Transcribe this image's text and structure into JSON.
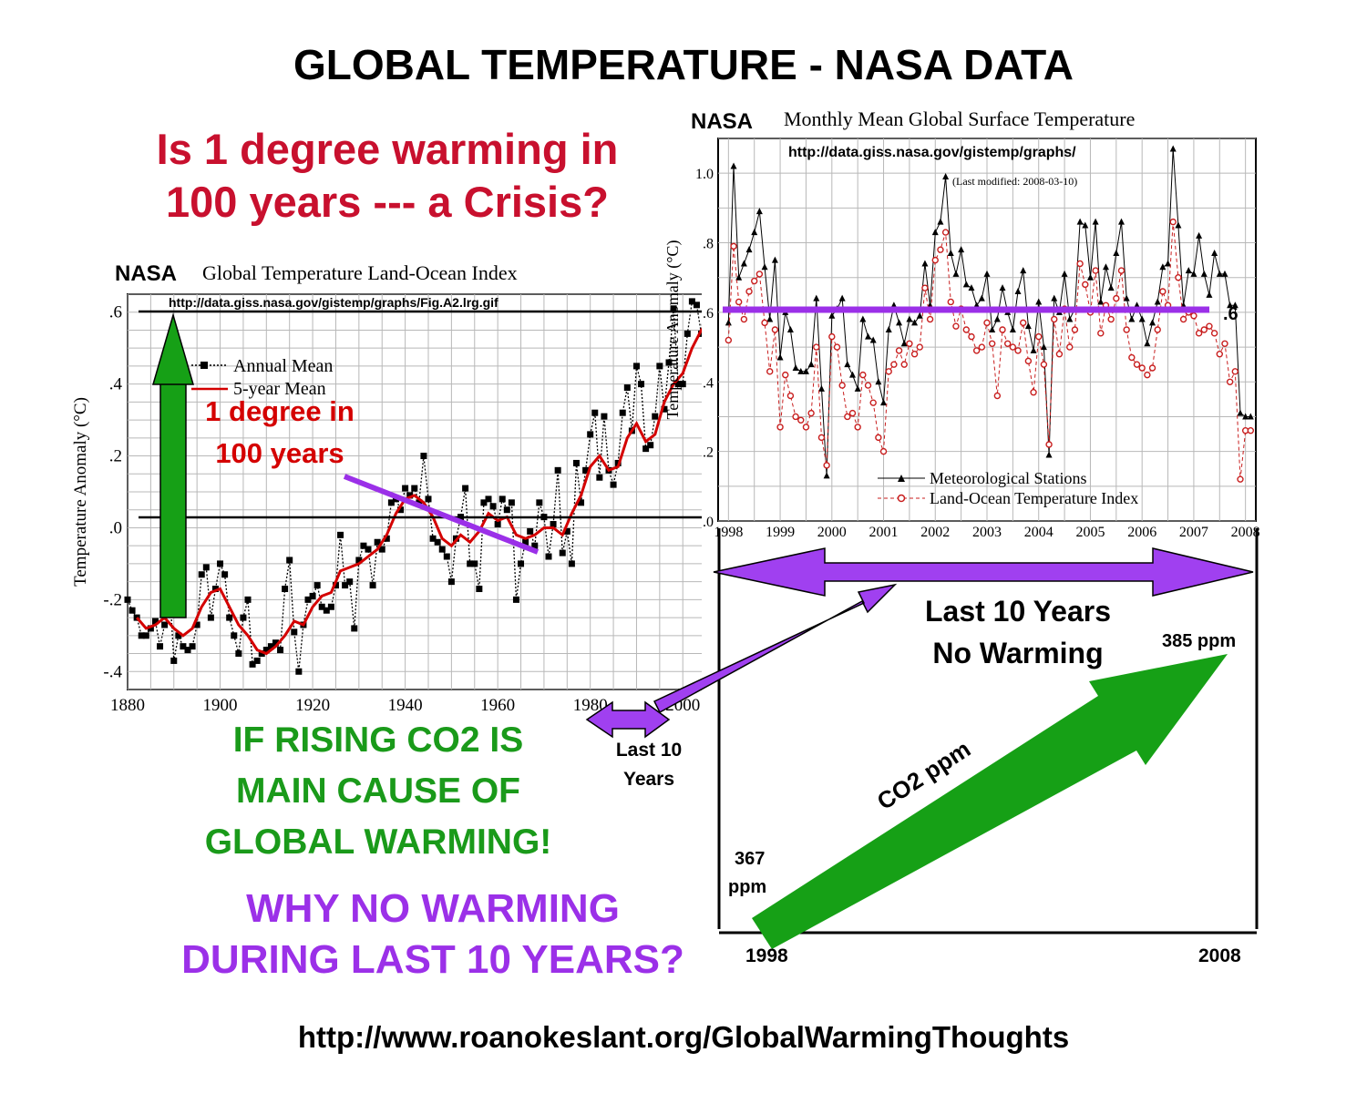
{
  "title": "GLOBAL TEMPERATURE - NASA DATA",
  "question": [
    "Is 1 degree warming in",
    "100 years  --- a Crisis?"
  ],
  "left_chart": {
    "source_label": "NASA",
    "title": "Global Temperature Land-Ocean Index",
    "url": "http://data.giss.nasa.gov/gistemp/graphs/Fig.A2.lrg.gif",
    "annotation": [
      "1 degree in",
      "100 years"
    ]
  },
  "right_chart": {
    "source_label": "NASA",
    "title": "Monthly Mean Global Surface Temperature",
    "url": "http://data.giss.nasa.gov/gistemp/graphs/",
    "modified": "(Last modified: 2008-03-10)",
    "level_label": ".6"
  },
  "co2_panel": {
    "span_label": [
      "Last 10 Years",
      "No Warming"
    ],
    "arrow_label": "CO2  ppm",
    "start_value": [
      "367",
      "ppm"
    ],
    "end_value": "385 ppm",
    "start_year": "1998",
    "end_year": "2008"
  },
  "small_label": [
    "Last 10",
    "Years"
  ],
  "if_text": [
    "IF RISING CO2  IS",
    "MAIN  CAUSE OF",
    "GLOBAL WARMING!"
  ],
  "why_text": [
    "WHY NO WARMING",
    "DURING LAST 10 YEARS?"
  ],
  "footer_url": "http://www.roanokeslant.org/GlobalWarmingThoughts",
  "colors": {
    "red": "#c8102e",
    "green": "#1a9a1a",
    "purple": "#9b30e8",
    "arrow_green": "#16a016"
  },
  "chart_data": [
    {
      "type": "line",
      "title": "Global Temperature Land-Ocean Index",
      "xlabel": "",
      "ylabel": "Temperature Anomaly (°C)",
      "xlim": [
        1880,
        2010
      ],
      "ylim": [
        -0.45,
        0.65
      ],
      "xticks": [
        1880,
        1900,
        1920,
        1940,
        1960,
        1980,
        2000
      ],
      "xtick_labels": [
        "1880",
        "1900",
        "1920",
        "1940",
        "1960",
        "1980",
        "2000"
      ],
      "yticks": [
        -0.4,
        -0.2,
        0.0,
        0.2,
        0.4,
        0.6
      ],
      "ytick_labels": [
        "-.4",
        "-.2",
        ".0",
        ".2",
        ".4",
        ".6"
      ],
      "grid": true,
      "legend": [
        "Annual Mean",
        "5-year Mean"
      ],
      "series": [
        {
          "name": "Annual Mean",
          "x": [
            1880,
            1881,
            1882,
            1883,
            1884,
            1885,
            1886,
            1887,
            1888,
            1889,
            1890,
            1891,
            1892,
            1893,
            1894,
            1895,
            1896,
            1897,
            1898,
            1899,
            1900,
            1901,
            1902,
            1903,
            1904,
            1905,
            1906,
            1907,
            1908,
            1909,
            1910,
            1911,
            1912,
            1913,
            1914,
            1915,
            1916,
            1917,
            1918,
            1919,
            1920,
            1921,
            1922,
            1923,
            1924,
            1925,
            1926,
            1927,
            1928,
            1929,
            1930,
            1931,
            1932,
            1933,
            1934,
            1935,
            1936,
            1937,
            1938,
            1939,
            1940,
            1941,
            1942,
            1943,
            1944,
            1945,
            1946,
            1947,
            1948,
            1949,
            1950,
            1951,
            1952,
            1953,
            1954,
            1955,
            1956,
            1957,
            1958,
            1959,
            1960,
            1961,
            1962,
            1963,
            1964,
            1965,
            1966,
            1967,
            1968,
            1969,
            1970,
            1971,
            1972,
            1973,
            1974,
            1975,
            1976,
            1977,
            1978,
            1979,
            1980,
            1981,
            1982,
            1983,
            1984,
            1985,
            1986,
            1987,
            1988,
            1989,
            1990,
            1991,
            1992,
            1993,
            1994,
            1995,
            1996,
            1997,
            1998,
            1999,
            2000,
            2001,
            2002,
            2003,
            2004,
            2005,
            2006,
            2007
          ],
          "values": [
            -0.2,
            -0.23,
            -0.25,
            -0.3,
            -0.3,
            -0.28,
            -0.26,
            -0.33,
            -0.27,
            -0.15,
            -0.37,
            -0.3,
            -0.33,
            -0.34,
            -0.33,
            -0.27,
            -0.13,
            -0.11,
            -0.25,
            -0.17,
            -0.1,
            -0.13,
            -0.25,
            -0.3,
            -0.35,
            -0.25,
            -0.2,
            -0.38,
            -0.37,
            -0.35,
            -0.34,
            -0.33,
            -0.32,
            -0.34,
            -0.17,
            -0.09,
            -0.29,
            -0.4,
            -0.27,
            -0.2,
            -0.19,
            -0.16,
            -0.22,
            -0.23,
            -0.22,
            -0.16,
            -0.02,
            -0.16,
            -0.15,
            -0.28,
            -0.09,
            -0.05,
            -0.06,
            -0.16,
            -0.04,
            -0.06,
            -0.03,
            0.07,
            0.08,
            0.05,
            0.11,
            0.09,
            0.11,
            0.07,
            0.2,
            0.08,
            -0.03,
            -0.04,
            -0.06,
            -0.08,
            -0.15,
            -0.03,
            0.03,
            0.11,
            -0.1,
            -0.1,
            -0.17,
            0.07,
            0.08,
            0.06,
            0.01,
            0.08,
            0.05,
            0.07,
            -0.2,
            -0.1,
            -0.04,
            -0.01,
            -0.05,
            0.07,
            0.03,
            -0.08,
            0.01,
            0.16,
            -0.07,
            -0.01,
            -0.1,
            0.18,
            0.07,
            0.16,
            0.26,
            0.32,
            0.14,
            0.31,
            0.16,
            0.12,
            0.18,
            0.32,
            0.39,
            0.27,
            0.45,
            0.4,
            0.22,
            0.23,
            0.31,
            0.45,
            0.33,
            0.46,
            0.61,
            0.4,
            0.4,
            0.54,
            0.63,
            0.62,
            0.54,
            0.68,
            0.61,
            0.57
          ]
        },
        {
          "name": "5-year Mean",
          "x": [
            1882,
            1884,
            1886,
            1888,
            1890,
            1892,
            1894,
            1896,
            1898,
            1900,
            1902,
            1904,
            1906,
            1908,
            1910,
            1912,
            1914,
            1916,
            1918,
            1920,
            1922,
            1924,
            1926,
            1928,
            1930,
            1932,
            1934,
            1936,
            1938,
            1940,
            1942,
            1944,
            1946,
            1948,
            1950,
            1952,
            1954,
            1956,
            1958,
            1960,
            1962,
            1964,
            1966,
            1968,
            1970,
            1972,
            1974,
            1976,
            1978,
            1980,
            1982,
            1984,
            1986,
            1988,
            1990,
            1992,
            1994,
            1996,
            1998,
            2000,
            2002,
            2004,
            2006
          ],
          "values": [
            -0.25,
            -0.28,
            -0.27,
            -0.25,
            -0.28,
            -0.3,
            -0.28,
            -0.22,
            -0.18,
            -0.17,
            -0.22,
            -0.27,
            -0.3,
            -0.34,
            -0.35,
            -0.33,
            -0.3,
            -0.26,
            -0.27,
            -0.22,
            -0.19,
            -0.18,
            -0.12,
            -0.11,
            -0.1,
            -0.08,
            -0.06,
            -0.02,
            0.04,
            0.08,
            0.09,
            0.07,
            0.03,
            -0.03,
            -0.05,
            -0.02,
            -0.04,
            -0.01,
            0.04,
            0.02,
            0.03,
            -0.02,
            -0.03,
            -0.02,
            0.0,
            0.0,
            -0.02,
            0.04,
            0.09,
            0.17,
            0.2,
            0.16,
            0.17,
            0.25,
            0.29,
            0.24,
            0.26,
            0.35,
            0.4,
            0.43,
            0.5,
            0.55,
            0.58
          ]
        }
      ]
    },
    {
      "type": "line",
      "title": "Monthly Mean Global Surface Temperature",
      "xlabel": "",
      "ylabel": "Temperature Anomaly (°C)",
      "xlim": [
        1997.8,
        2008.2
      ],
      "ylim": [
        0.0,
        1.1
      ],
      "xticks": [
        1998,
        1999,
        2000,
        2001,
        2002,
        2003,
        2004,
        2005,
        2006,
        2007,
        2008
      ],
      "xtick_labels": [
        "1998",
        "1999",
        "2000",
        "2001",
        "2002",
        "2003",
        "2004",
        "2005",
        "2006",
        "2007",
        "2008"
      ],
      "yticks": [
        0.0,
        0.2,
        0.4,
        0.6,
        0.8,
        1.0
      ],
      "ytick_labels": [
        ".0",
        ".2",
        ".4",
        ".6",
        ".8",
        "1.0"
      ],
      "grid": true,
      "legend": [
        "Meteorological Stations",
        "Land-Ocean Temperature Index"
      ],
      "reference_line": 0.6,
      "series": [
        {
          "name": "Meteorological Stations",
          "x": [
            1998.0,
            1998.1,
            1998.2,
            1998.3,
            1998.4,
            1998.5,
            1998.6,
            1998.7,
            1998.8,
            1998.9,
            1999.0,
            1999.1,
            1999.2,
            1999.3,
            1999.4,
            1999.5,
            1999.6,
            1999.7,
            1999.8,
            1999.9,
            2000.0,
            2000.1,
            2000.2,
            2000.3,
            2000.4,
            2000.5,
            2000.6,
            2000.7,
            2000.8,
            2000.9,
            2001.0,
            2001.1,
            2001.2,
            2001.3,
            2001.4,
            2001.5,
            2001.6,
            2001.7,
            2001.8,
            2001.9,
            2002.0,
            2002.1,
            2002.2,
            2002.3,
            2002.4,
            2002.5,
            2002.6,
            2002.7,
            2002.8,
            2002.9,
            2003.0,
            2003.1,
            2003.2,
            2003.3,
            2003.4,
            2003.5,
            2003.6,
            2003.7,
            2003.8,
            2003.9,
            2004.0,
            2004.1,
            2004.2,
            2004.3,
            2004.4,
            2004.5,
            2004.6,
            2004.7,
            2004.8,
            2004.9,
            2005.0,
            2005.1,
            2005.2,
            2005.3,
            2005.4,
            2005.5,
            2005.6,
            2005.7,
            2005.8,
            2005.9,
            2006.0,
            2006.1,
            2006.2,
            2006.3,
            2006.4,
            2006.5,
            2006.6,
            2006.7,
            2006.8,
            2006.9,
            2007.0,
            2007.1,
            2007.2,
            2007.3,
            2007.4,
            2007.5,
            2007.6,
            2007.7,
            2007.8,
            2007.9,
            2008.0,
            2008.1
          ],
          "values": [
            0.57,
            1.02,
            0.7,
            0.74,
            0.78,
            0.83,
            0.89,
            0.73,
            0.58,
            0.75,
            0.47,
            0.6,
            0.55,
            0.44,
            0.43,
            0.43,
            0.45,
            0.64,
            0.38,
            0.13,
            0.59,
            0.61,
            0.64,
            0.45,
            0.42,
            0.38,
            0.58,
            0.53,
            0.52,
            0.4,
            0.34,
            0.55,
            0.62,
            0.57,
            0.51,
            0.58,
            0.57,
            0.59,
            0.74,
            0.62,
            0.83,
            0.86,
            0.99,
            0.77,
            0.71,
            0.78,
            0.68,
            0.67,
            0.62,
            0.64,
            0.71,
            0.55,
            0.58,
            0.67,
            0.6,
            0.55,
            0.66,
            0.72,
            0.56,
            0.49,
            0.63,
            0.5,
            0.19,
            0.64,
            0.6,
            0.71,
            0.58,
            0.61,
            0.86,
            0.85,
            0.7,
            0.86,
            0.63,
            0.73,
            0.67,
            0.77,
            0.86,
            0.64,
            0.58,
            0.62,
            0.58,
            0.51,
            0.57,
            0.63,
            0.73,
            0.74,
            1.07,
            0.85,
            0.62,
            0.72,
            0.71,
            0.82,
            0.71,
            0.65,
            0.77,
            0.71,
            0.71,
            0.62,
            0.62,
            0.31,
            0.3,
            0.3
          ]
        },
        {
          "name": "Land-Ocean Temperature Index",
          "x": [
            1998.0,
            1998.1,
            1998.2,
            1998.3,
            1998.4,
            1998.5,
            1998.6,
            1998.7,
            1998.8,
            1998.9,
            1999.0,
            1999.1,
            1999.2,
            1999.3,
            1999.4,
            1999.5,
            1999.6,
            1999.7,
            1999.8,
            1999.9,
            2000.0,
            2000.1,
            2000.2,
            2000.3,
            2000.4,
            2000.5,
            2000.6,
            2000.7,
            2000.8,
            2000.9,
            2001.0,
            2001.1,
            2001.2,
            2001.3,
            2001.4,
            2001.5,
            2001.6,
            2001.7,
            2001.8,
            2001.9,
            2002.0,
            2002.1,
            2002.2,
            2002.3,
            2002.4,
            2002.5,
            2002.6,
            2002.7,
            2002.8,
            2002.9,
            2003.0,
            2003.1,
            2003.2,
            2003.3,
            2003.4,
            2003.5,
            2003.6,
            2003.7,
            2003.8,
            2003.9,
            2004.0,
            2004.1,
            2004.2,
            2004.3,
            2004.4,
            2004.5,
            2004.6,
            2004.7,
            2004.8,
            2004.9,
            2005.0,
            2005.1,
            2005.2,
            2005.3,
            2005.4,
            2005.5,
            2005.6,
            2005.7,
            2005.8,
            2005.9,
            2006.0,
            2006.1,
            2006.2,
            2006.3,
            2006.4,
            2006.5,
            2006.6,
            2006.7,
            2006.8,
            2006.9,
            2007.0,
            2007.1,
            2007.2,
            2007.3,
            2007.4,
            2007.5,
            2007.6,
            2007.7,
            2007.8,
            2007.9,
            2008.0,
            2008.1
          ],
          "values": [
            0.52,
            0.79,
            0.63,
            0.58,
            0.66,
            0.69,
            0.71,
            0.57,
            0.43,
            0.55,
            0.27,
            0.42,
            0.36,
            0.3,
            0.29,
            0.27,
            0.31,
            0.5,
            0.24,
            0.16,
            0.53,
            0.5,
            0.39,
            0.3,
            0.31,
            0.27,
            0.42,
            0.39,
            0.34,
            0.24,
            0.2,
            0.43,
            0.45,
            0.49,
            0.45,
            0.51,
            0.48,
            0.5,
            0.67,
            0.58,
            0.75,
            0.78,
            0.83,
            0.63,
            0.56,
            0.61,
            0.55,
            0.53,
            0.49,
            0.5,
            0.57,
            0.51,
            0.36,
            0.55,
            0.51,
            0.5,
            0.49,
            0.57,
            0.46,
            0.37,
            0.53,
            0.45,
            0.22,
            0.58,
            0.48,
            0.61,
            0.5,
            0.55,
            0.74,
            0.68,
            0.6,
            0.72,
            0.54,
            0.62,
            0.58,
            0.64,
            0.72,
            0.55,
            0.47,
            0.45,
            0.44,
            0.42,
            0.44,
            0.55,
            0.66,
            0.62,
            0.86,
            0.7,
            0.58,
            0.6,
            0.59,
            0.54,
            0.55,
            0.56,
            0.54,
            0.48,
            0.51,
            0.4,
            0.43,
            0.12,
            0.26,
            0.26
          ]
        }
      ]
    },
    {
      "type": "line",
      "title": "CO2  ppm",
      "x": [
        1998,
        2008
      ],
      "values": [
        367,
        385
      ],
      "xtick_labels": [
        "1998",
        "2008"
      ]
    }
  ]
}
